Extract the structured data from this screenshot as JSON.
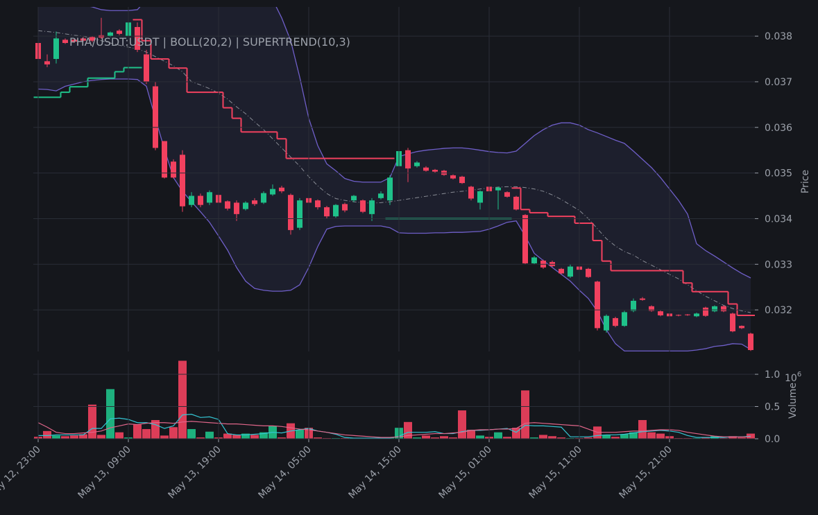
{
  "chart_data": [
    {
      "type": "candlestick",
      "title": "PHA/USDT:USDT | BOLL(20,2) | SUPERTREND(10,3)",
      "ylabel": "Price",
      "up_color": "#1fc28a",
      "down_color": "#f2415f",
      "band_color": "#6f5fc9",
      "band_fill": "#1e2030",
      "mid_color": "#8a8d96",
      "x": [
        "May 12, 23:00",
        "May 13, 00:00",
        "May 13, 01:00",
        "May 13, 02:00",
        "May 13, 03:00",
        "May 13, 04:00",
        "May 13, 05:00",
        "May 13, 06:00",
        "May 13, 07:00",
        "May 13, 08:00",
        "May 13, 09:00",
        "May 13, 10:00",
        "May 13, 11:00",
        "May 13, 12:00",
        "May 13, 13:00",
        "May 13, 14:00",
        "May 13, 15:00",
        "May 13, 16:00",
        "May 13, 17:00",
        "May 13, 18:00",
        "May 13, 19:00",
        "May 13, 20:00",
        "May 13, 21:00",
        "May 13, 22:00",
        "May 13, 23:00",
        "May 14, 00:00",
        "May 14, 01:00",
        "May 14, 02:00",
        "May 14, 03:00",
        "May 14, 04:00",
        "May 14, 05:00",
        "May 14, 06:00",
        "May 14, 07:00",
        "May 14, 08:00",
        "May 14, 09:00",
        "May 14, 10:00",
        "May 14, 11:00",
        "May 14, 12:00",
        "May 14, 13:00",
        "May 14, 14:00",
        "May 14, 15:00",
        "May 14, 16:00",
        "May 14, 17:00",
        "May 14, 18:00",
        "May 14, 19:00",
        "May 14, 20:00",
        "May 14, 21:00",
        "May 14, 22:00",
        "May 14, 23:00",
        "May 15, 00:00",
        "May 15, 01:00",
        "May 15, 02:00",
        "May 15, 03:00",
        "May 15, 04:00",
        "May 15, 05:00",
        "May 15, 06:00",
        "May 15, 07:00",
        "May 15, 08:00",
        "May 15, 09:00",
        "May 15, 10:00",
        "May 15, 11:00",
        "May 15, 12:00",
        "May 15, 13:00",
        "May 15, 14:00",
        "May 15, 15:00",
        "May 15, 16:00",
        "May 15, 17:00",
        "May 15, 18:00",
        "May 15, 19:00",
        "May 15, 20:00",
        "May 15, 21:00",
        "May 15, 22:00",
        "May 15, 23:00",
        "May 16, 00:00",
        "May 16, 01:00",
        "May 16, 02:00",
        "May 16, 03:00",
        "May 16, 04:00",
        "May 16, 05:00",
        "May 16, 06:00"
      ],
      "xticks": [
        "May 12, 23:00",
        "May 13, 09:00",
        "May 13, 19:00",
        "May 14, 05:00",
        "May 14, 15:00",
        "May 15, 01:00",
        "May 15, 11:00",
        "May 15, 21:00"
      ],
      "open": [
        0.03785,
        0.03745,
        0.0375,
        0.03792,
        0.03792,
        0.03795,
        0.03798,
        0.03802,
        0.038,
        0.03812,
        0.038,
        0.0382,
        0.0376,
        0.0369,
        0.0357,
        0.03525,
        0.0354,
        0.0343,
        0.0345,
        0.03435,
        0.03452,
        0.03438,
        0.03435,
        0.03421,
        0.0344,
        0.03435,
        0.03453,
        0.03468,
        0.03452,
        0.0338,
        0.03445,
        0.0344,
        0.03425,
        0.03405,
        0.03432,
        0.0344,
        0.0344,
        0.0341,
        0.03445,
        0.0344,
        0.03515,
        0.0355,
        0.03515,
        0.03512,
        0.03507,
        0.03505,
        0.03495,
        0.03492,
        0.0347,
        0.03435,
        0.0347,
        0.03462,
        0.03458,
        0.03448,
        0.03408,
        0.03302,
        0.03308,
        0.03305,
        0.0329,
        0.03273,
        0.03295,
        0.0329,
        0.03262,
        0.03155,
        0.03182,
        0.03165,
        0.03198,
        0.03225,
        0.03208,
        0.03197,
        0.03192,
        0.03189,
        0.0319,
        0.03186,
        0.03205,
        0.03197,
        0.03208,
        0.03192,
        0.03165,
        0.03148
      ],
      "high": [
        0.0379,
        0.0376,
        0.0381,
        0.03795,
        0.03795,
        0.03798,
        0.038,
        0.0384,
        0.0381,
        0.03815,
        0.0385,
        0.0383,
        0.0377,
        0.037,
        0.0357,
        0.0353,
        0.0355,
        0.03458,
        0.03455,
        0.03462,
        0.03455,
        0.0344,
        0.0344,
        0.03438,
        0.03445,
        0.0346,
        0.03475,
        0.03472,
        0.03455,
        0.03445,
        0.03448,
        0.03442,
        0.03428,
        0.03432,
        0.03435,
        0.03452,
        0.03442,
        0.03445,
        0.0346,
        0.03495,
        0.0355,
        0.03555,
        0.03526,
        0.03515,
        0.03509,
        0.03507,
        0.03497,
        0.03494,
        0.03472,
        0.03462,
        0.03472,
        0.0347,
        0.0346,
        0.0345,
        0.0341,
        0.03318,
        0.0331,
        0.03308,
        0.03292,
        0.033,
        0.03298,
        0.03292,
        0.03264,
        0.0319,
        0.03185,
        0.03198,
        0.03225,
        0.03228,
        0.0321,
        0.03199,
        0.03194,
        0.0319,
        0.03191,
        0.03194,
        0.03207,
        0.0321,
        0.0321,
        0.03194,
        0.03166,
        0.0315
      ],
      "low": [
        0.0374,
        0.03732,
        0.0374,
        0.03783,
        0.03785,
        0.03788,
        0.03787,
        0.03794,
        0.03798,
        0.03802,
        0.03795,
        0.03765,
        0.03695,
        0.0355,
        0.03488,
        0.03488,
        0.03415,
        0.03425,
        0.03425,
        0.0343,
        0.03432,
        0.03418,
        0.03395,
        0.03418,
        0.03428,
        0.03432,
        0.0345,
        0.03456,
        0.03365,
        0.03375,
        0.0343,
        0.0342,
        0.034,
        0.03402,
        0.03414,
        0.03436,
        0.03412,
        0.03395,
        0.03442,
        0.0343,
        0.0351,
        0.0348,
        0.03512,
        0.03503,
        0.035,
        0.03494,
        0.03486,
        0.03476,
        0.0344,
        0.0342,
        0.03457,
        0.0342,
        0.03446,
        0.03418,
        0.033,
        0.033,
        0.0329,
        0.03294,
        0.03278,
        0.0327,
        0.03286,
        0.0327,
        0.03155,
        0.0315,
        0.03162,
        0.03163,
        0.03195,
        0.0322,
        0.03196,
        0.03186,
        0.03184,
        0.03186,
        0.03187,
        0.03184,
        0.03185,
        0.03195,
        0.03195,
        0.03151,
        0.03158,
        0.0311
      ],
      "close": [
        0.0375,
        0.03738,
        0.03795,
        0.03785,
        0.03788,
        0.0379,
        0.0379,
        0.03797,
        0.03808,
        0.03805,
        0.0383,
        0.0377,
        0.037,
        0.03555,
        0.0349,
        0.0349,
        0.03427,
        0.0345,
        0.0343,
        0.03458,
        0.03435,
        0.03422,
        0.0341,
        0.03435,
        0.03432,
        0.03456,
        0.03465,
        0.0346,
        0.03375,
        0.0344,
        0.03435,
        0.03425,
        0.03405,
        0.0343,
        0.03418,
        0.0345,
        0.03415,
        0.0344,
        0.03455,
        0.0349,
        0.03548,
        0.0351,
        0.03523,
        0.03505,
        0.03503,
        0.03496,
        0.03488,
        0.03478,
        0.03444,
        0.0346,
        0.0346,
        0.03468,
        0.03448,
        0.0342,
        0.03302,
        0.03315,
        0.03293,
        0.03296,
        0.0328,
        0.03295,
        0.03288,
        0.03272,
        0.0316,
        0.03187,
        0.03165,
        0.03195,
        0.0322,
        0.03222,
        0.03198,
        0.03188,
        0.03186,
        0.03188,
        0.03189,
        0.03192,
        0.03187,
        0.03208,
        0.03197,
        0.03153,
        0.0316,
        0.03112
      ],
      "boll_upper": [
        0.039,
        0.0389,
        0.0388,
        0.0387,
        0.03872,
        0.03868,
        0.03864,
        0.03858,
        0.03856,
        0.03856,
        0.03856,
        0.03858,
        0.0388,
        0.0392,
        0.0396,
        0.0399,
        0.0401,
        0.0402,
        0.0402,
        0.0401,
        0.04,
        0.0398,
        0.0396,
        0.0394,
        0.0392,
        0.039,
        0.0388,
        0.0384,
        0.0379,
        0.0371,
        0.0362,
        0.0356,
        0.0352,
        0.03505,
        0.03488,
        0.03482,
        0.0348,
        0.0348,
        0.0348,
        0.0349,
        0.03536,
        0.03542,
        0.03547,
        0.0355,
        0.03552,
        0.03554,
        0.03555,
        0.03555,
        0.03553,
        0.0355,
        0.03547,
        0.03545,
        0.03544,
        0.03548,
        0.03565,
        0.03582,
        0.03595,
        0.03605,
        0.0361,
        0.0361,
        0.03605,
        0.03595,
        0.03588,
        0.0358,
        0.03572,
        0.03565,
        0.03548,
        0.0353,
        0.03512,
        0.0349,
        0.03465,
        0.0344,
        0.0341,
        0.03345,
        0.0333,
        0.03318,
        0.03305,
        0.03292,
        0.0328,
        0.0327
      ],
      "boll_mid": [
        0.03812,
        0.0381,
        0.03808,
        0.03805,
        0.03802,
        0.038,
        0.03795,
        0.0379,
        0.03785,
        0.0378,
        0.03776,
        0.03772,
        0.03765,
        0.03755,
        0.03745,
        0.03735,
        0.03722,
        0.037,
        0.03693,
        0.03685,
        0.03675,
        0.03662,
        0.03645,
        0.0363,
        0.03612,
        0.03595,
        0.03575,
        0.03555,
        0.03535,
        0.03515,
        0.03492,
        0.03472,
        0.03455,
        0.03444,
        0.0344,
        0.03437,
        0.03435,
        0.03434,
        0.03435,
        0.03437,
        0.0344,
        0.03443,
        0.03446,
        0.03449,
        0.03452,
        0.03455,
        0.03458,
        0.0346,
        0.03462,
        0.03465,
        0.03467,
        0.03469,
        0.0347,
        0.0347,
        0.03468,
        0.03465,
        0.0346,
        0.03452,
        0.03442,
        0.0343,
        0.03418,
        0.034,
        0.03378,
        0.03356,
        0.0334,
        0.03328,
        0.0332,
        0.03308,
        0.03298,
        0.03288,
        0.03278,
        0.03268,
        0.03255,
        0.03242,
        0.0323,
        0.0322,
        0.0321,
        0.03203,
        0.03198,
        0.03194
      ],
      "boll_lower": [
        0.03684,
        0.03683,
        0.0368,
        0.0369,
        0.03695,
        0.037,
        0.03703,
        0.03705,
        0.03706,
        0.03706,
        0.03706,
        0.03705,
        0.0369,
        0.0362,
        0.03552,
        0.0349,
        0.0346,
        0.03437,
        0.03415,
        0.03392,
        0.03362,
        0.03331,
        0.03293,
        0.03263,
        0.03247,
        0.03243,
        0.03241,
        0.03241,
        0.03243,
        0.03255,
        0.03293,
        0.03339,
        0.03377,
        0.03383,
        0.03384,
        0.03384,
        0.03384,
        0.03384,
        0.03384,
        0.0338,
        0.03369,
        0.03368,
        0.03368,
        0.03368,
        0.03369,
        0.03369,
        0.0337,
        0.0337,
        0.03371,
        0.03372,
        0.03377,
        0.03384,
        0.03392,
        0.03395,
        0.03362,
        0.03324,
        0.03308,
        0.03293,
        0.03278,
        0.03263,
        0.03243,
        0.03225,
        0.03197,
        0.03156,
        0.03126,
        0.0311,
        0.0311,
        0.0311,
        0.0311,
        0.0311,
        0.0311,
        0.0311,
        0.0311,
        0.03112,
        0.03115,
        0.0312,
        0.03122,
        0.03126,
        0.03125,
        0.03113
      ],
      "supertrend_up": [
        0.03666,
        0.03666,
        0.03666,
        0.03677,
        0.03689,
        0.03689,
        0.03708,
        0.03708,
        0.03708,
        0.03722,
        0.03731,
        0.03731,
        null,
        null,
        null,
        null,
        null,
        null,
        null,
        null,
        null,
        null,
        null,
        null,
        null,
        null,
        null,
        null,
        null,
        null,
        null,
        null,
        null,
        null,
        null,
        null,
        null,
        null,
        null,
        0.034,
        0.034,
        0.034,
        0.034,
        0.034,
        0.034,
        0.034,
        0.034,
        0.034,
        0.034,
        0.034,
        0.034,
        0.034,
        0.034,
        null,
        null,
        null,
        null,
        null,
        null,
        null,
        null,
        null,
        null,
        null,
        null,
        null,
        null,
        null,
        null,
        null,
        null,
        null,
        null,
        null,
        null,
        null,
        null,
        null,
        null,
        null
      ],
      "supertrend_down": [
        null,
        null,
        null,
        null,
        null,
        null,
        null,
        null,
        null,
        null,
        null,
        0.03836,
        0.0379,
        0.0375,
        0.0375,
        0.0373,
        0.0373,
        0.03677,
        0.03677,
        0.03677,
        0.03677,
        0.03643,
        0.0362,
        0.0359,
        0.0359,
        0.0359,
        0.0359,
        0.03575,
        0.03532,
        0.03532,
        0.03532,
        0.03532,
        0.03532,
        0.03532,
        0.03532,
        0.03532,
        0.03532,
        0.03532,
        0.03532,
        0.03532,
        null,
        null,
        null,
        null,
        null,
        null,
        null,
        null,
        null,
        null,
        null,
        null,
        null,
        0.03467,
        0.0342,
        0.03413,
        0.03413,
        0.03405,
        0.03405,
        0.03405,
        0.0339,
        0.0339,
        0.03352,
        0.03307,
        0.03286,
        0.03286,
        0.03286,
        0.03286,
        0.03286,
        0.03286,
        0.03286,
        0.03286,
        0.03259,
        0.0324,
        0.0324,
        0.0324,
        0.0324,
        0.03213,
        0.03188,
        0.03188
      ],
      "ylim": [
        0.03109,
        0.03864
      ],
      "yticks": [
        0.032,
        0.033,
        0.034,
        0.035,
        0.036,
        0.037,
        0.038
      ],
      "grid": true
    },
    {
      "type": "bar",
      "ylabel": "Volume",
      "offset_base": "10",
      "offset_exponent": "6",
      "values": [
        0.03,
        0.12,
        0.05,
        0.04,
        0.05,
        0.07,
        0.53,
        0.06,
        0.77,
        0.1,
        0.02,
        0.22,
        0.15,
        0.29,
        0.05,
        0.18,
        1.21,
        0.15,
        0.02,
        0.11,
        0.02,
        0.08,
        0.06,
        0.08,
        0.06,
        0.1,
        0.2,
        0.02,
        0.24,
        0.14,
        0.17,
        0.02,
        0.01,
        0.01,
        0.01,
        0.01,
        0.01,
        0.01,
        0.01,
        0.02,
        0.17,
        0.26,
        0.02,
        0.05,
        0.02,
        0.04,
        0.02,
        0.44,
        0.14,
        0.05,
        0.03,
        0.1,
        0.03,
        0.17,
        0.75,
        0.02,
        0.06,
        0.04,
        0.02,
        0.01,
        0.01,
        0.02,
        0.19,
        0.06,
        0.03,
        0.07,
        0.1,
        0.29,
        0.1,
        0.08,
        0.04,
        0.01,
        0.01,
        0.01,
        0.02,
        0.04,
        0.01,
        0.04,
        0.02,
        0.08
      ],
      "series": [
        {
          "color": "#34c6d4",
          "values": [
            0.05,
            0.05,
            0.06,
            0.06,
            0.06,
            0.06,
            0.16,
            0.16,
            0.31,
            0.32,
            0.3,
            0.25,
            0.25,
            0.22,
            0.16,
            0.2,
            0.37,
            0.38,
            0.33,
            0.34,
            0.3,
            0.08,
            0.06,
            0.06,
            0.07,
            0.08,
            0.1,
            0.09,
            0.12,
            0.14,
            0.16,
            0.12,
            0.1,
            0.07,
            0.02,
            0.01,
            0.01,
            0.01,
            0.01,
            0.01,
            0.04,
            0.1,
            0.1,
            0.1,
            0.11,
            0.08,
            0.08,
            0.11,
            0.13,
            0.13,
            0.14,
            0.15,
            0.16,
            0.1,
            0.21,
            0.2,
            0.2,
            0.19,
            0.18,
            0.03,
            0.03,
            0.03,
            0.05,
            0.06,
            0.06,
            0.07,
            0.09,
            0.11,
            0.12,
            0.13,
            0.12,
            0.1,
            0.05,
            0.02,
            0.02,
            0.02,
            0.02,
            0.03,
            0.03,
            0.04
          ]
        },
        {
          "color": "#e0668a",
          "values": [
            0.25,
            0.18,
            0.1,
            0.08,
            0.08,
            0.09,
            0.1,
            0.12,
            0.17,
            0.2,
            0.23,
            0.22,
            0.24,
            0.25,
            0.25,
            0.24,
            0.26,
            0.27,
            0.26,
            0.25,
            0.24,
            0.23,
            0.23,
            0.22,
            0.21,
            0.2,
            0.2,
            0.19,
            0.17,
            0.15,
            0.14,
            0.12,
            0.1,
            0.08,
            0.06,
            0.05,
            0.04,
            0.03,
            0.02,
            0.02,
            0.03,
            0.05,
            0.06,
            0.07,
            0.08,
            0.08,
            0.09,
            0.1,
            0.13,
            0.14,
            0.14,
            0.15,
            0.15,
            0.16,
            0.24,
            0.25,
            0.24,
            0.23,
            0.22,
            0.21,
            0.2,
            0.15,
            0.1,
            0.1,
            0.1,
            0.11,
            0.12,
            0.12,
            0.13,
            0.14,
            0.14,
            0.13,
            0.1,
            0.08,
            0.06,
            0.04,
            0.03,
            0.03,
            0.03,
            0.03
          ]
        }
      ],
      "ylim": [
        0,
        1.22
      ],
      "yticks": [
        {
          "value": 0,
          "label": "0.0"
        },
        0.5,
        {
          "value": 1,
          "label": "1.0"
        }
      ],
      "grid": true
    }
  ]
}
